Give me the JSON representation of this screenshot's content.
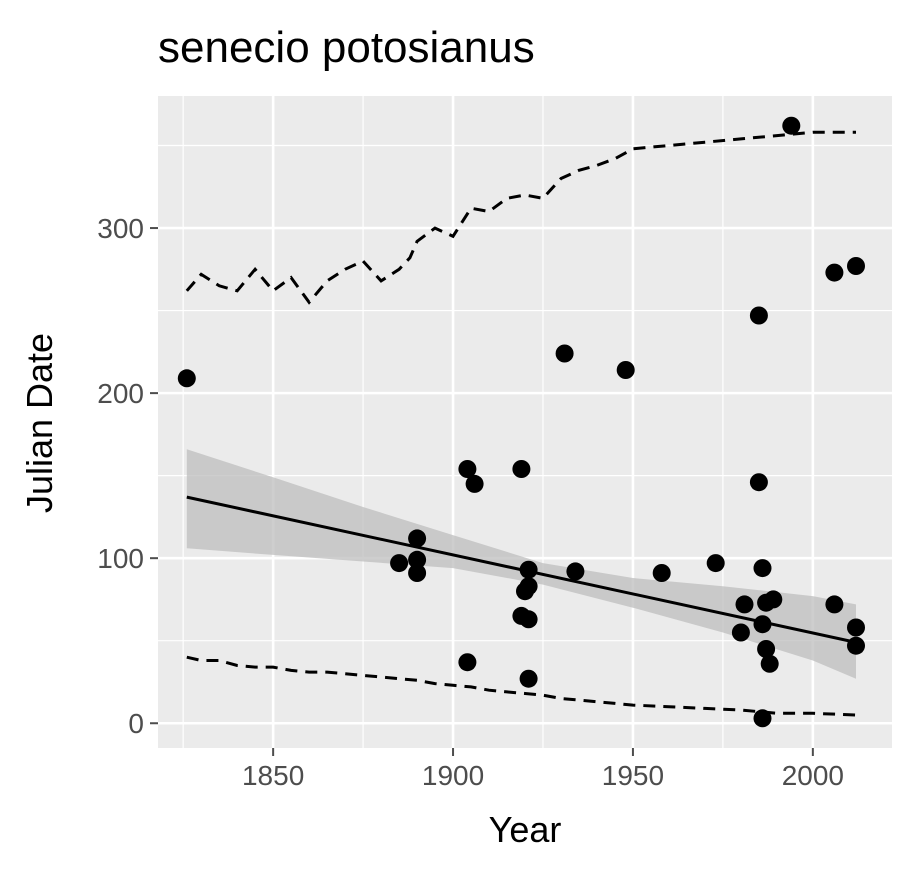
{
  "chart_data": {
    "type": "scatter",
    "title": "senecio potosianus",
    "xlabel": "Year",
    "ylabel": "Julian Date",
    "xlim": [
      1818,
      2022
    ],
    "ylim": [
      -15,
      380
    ],
    "xticks": [
      1850,
      1900,
      1950,
      2000
    ],
    "yticks": [
      0,
      100,
      200,
      300
    ],
    "grid": true,
    "legend": "none",
    "colors": {
      "panel": "#ebebeb",
      "grid": "#ffffff",
      "points": "#000000",
      "ribbon": "#bdbdbd",
      "fit": "#000000",
      "ticks": "#4d4d4d"
    },
    "points": [
      {
        "x": 1826,
        "y": 209
      },
      {
        "x": 1885,
        "y": 97
      },
      {
        "x": 1890,
        "y": 112
      },
      {
        "x": 1890,
        "y": 99
      },
      {
        "x": 1890,
        "y": 91
      },
      {
        "x": 1904,
        "y": 154
      },
      {
        "x": 1904,
        "y": 37
      },
      {
        "x": 1906,
        "y": 145
      },
      {
        "x": 1919,
        "y": 154
      },
      {
        "x": 1919,
        "y": 65
      },
      {
        "x": 1920,
        "y": 80
      },
      {
        "x": 1921,
        "y": 63
      },
      {
        "x": 1921,
        "y": 83
      },
      {
        "x": 1921,
        "y": 93
      },
      {
        "x": 1921,
        "y": 27
      },
      {
        "x": 1931,
        "y": 224
      },
      {
        "x": 1934,
        "y": 92
      },
      {
        "x": 1948,
        "y": 214
      },
      {
        "x": 1958,
        "y": 91
      },
      {
        "x": 1973,
        "y": 97
      },
      {
        "x": 1980,
        "y": 55
      },
      {
        "x": 1981,
        "y": 72
      },
      {
        "x": 1985,
        "y": 247
      },
      {
        "x": 1985,
        "y": 146
      },
      {
        "x": 1986,
        "y": 94
      },
      {
        "x": 1986,
        "y": 60
      },
      {
        "x": 1986,
        "y": 3
      },
      {
        "x": 1987,
        "y": 73
      },
      {
        "x": 1987,
        "y": 45
      },
      {
        "x": 1988,
        "y": 36
      },
      {
        "x": 1989,
        "y": 75
      },
      {
        "x": 1994,
        "y": 362
      },
      {
        "x": 2006,
        "y": 273
      },
      {
        "x": 2006,
        "y": 72
      },
      {
        "x": 2012,
        "y": 277
      },
      {
        "x": 2012,
        "y": 58
      },
      {
        "x": 2012,
        "y": 47
      }
    ],
    "fit_line": {
      "x": [
        1826,
        2012
      ],
      "y": [
        137,
        49
      ]
    },
    "ribbon": {
      "x": [
        1826,
        1850,
        1875,
        1900,
        1925,
        1950,
        1975,
        2000,
        2012
      ],
      "upper": [
        166,
        149,
        131,
        114,
        97,
        88,
        83,
        77,
        72
      ],
      "lower": [
        106,
        102,
        98,
        94,
        84,
        70,
        55,
        38,
        27
      ]
    },
    "upper_dashed": {
      "x": [
        1826,
        1830,
        1835,
        1840,
        1845,
        1850,
        1855,
        1860,
        1865,
        1870,
        1875,
        1880,
        1885,
        1888,
        1890,
        1895,
        1900,
        1905,
        1910,
        1915,
        1920,
        1925,
        1930,
        1935,
        1940,
        1945,
        1950,
        1960,
        1970,
        1980,
        1990,
        2000,
        2012
      ],
      "y": [
        262,
        272,
        265,
        262,
        275,
        262,
        270,
        255,
        268,
        275,
        280,
        268,
        275,
        282,
        292,
        300,
        295,
        312,
        310,
        318,
        320,
        318,
        330,
        335,
        338,
        342,
        348,
        350,
        352,
        354,
        356,
        358,
        358
      ]
    },
    "lower_dashed": {
      "x": [
        1826,
        1830,
        1835,
        1840,
        1845,
        1850,
        1855,
        1860,
        1865,
        1870,
        1875,
        1880,
        1885,
        1890,
        1895,
        1900,
        1905,
        1910,
        1915,
        1920,
        1925,
        1930,
        1935,
        1940,
        1945,
        1950,
        1960,
        1970,
        1980,
        1990,
        2000,
        2012
      ],
      "y": [
        40,
        38,
        38,
        35,
        34,
        34,
        32,
        31,
        31,
        30,
        29,
        28,
        27,
        26,
        24,
        23,
        22,
        20,
        19,
        18,
        17,
        15,
        14,
        13,
        12,
        11,
        10,
        9,
        8,
        6,
        6,
        5
      ]
    }
  }
}
